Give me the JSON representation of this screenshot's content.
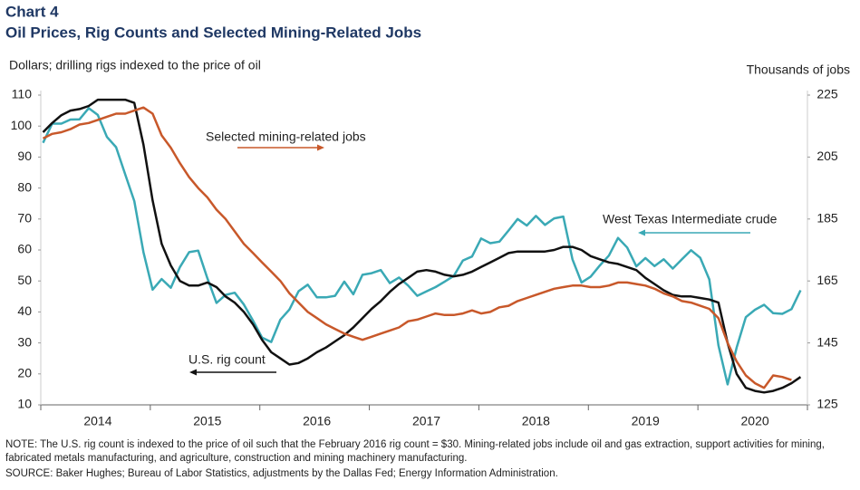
{
  "chart_data": {
    "type": "line",
    "kicker": "Chart 4",
    "title": "Oil Prices, Rig Counts and Selected Mining-Related Jobs",
    "y_label": "Dollars; drilling rigs indexed to the price of oil",
    "y2_label": "Thousands  of  jobs",
    "note": "NOTE: The U.S. rig count is indexed to the price of oil such that the February 2016 rig count = $30. Mining-related  jobs include oil and gas extraction, support activities for mining, fabricated metals manufacturing,  and agriculture, construction and mining machinery manufacturing.",
    "source": "SOURCE: Baker Hughes; Bureau of Labor Statistics, adjustments by the Dallas Fed; Energy Information  Administration.",
    "categories": [
      null,
      null,
      null,
      null,
      null,
      null,
      "2014",
      null,
      null,
      null,
      null,
      null,
      null,
      null,
      null,
      null,
      null,
      null,
      "2015",
      null,
      null,
      null,
      null,
      null,
      null,
      null,
      null,
      null,
      null,
      null,
      "2016",
      null,
      null,
      null,
      null,
      null,
      null,
      null,
      null,
      null,
      null,
      null,
      "2017",
      null,
      null,
      null,
      null,
      null,
      null,
      null,
      null,
      null,
      null,
      null,
      "2018",
      null,
      null,
      null,
      null,
      null,
      null,
      null,
      null,
      null,
      null,
      null,
      "2019",
      null,
      null,
      null,
      null,
      null,
      null,
      null,
      null,
      null,
      null,
      null,
      "2020",
      null,
      null,
      null,
      null,
      null
    ],
    "ylim": [
      10,
      110
    ],
    "yticks": [
      10,
      20,
      30,
      40,
      50,
      60,
      70,
      80,
      90,
      100,
      110
    ],
    "y2lim": [
      125,
      225
    ],
    "y2ticks": [
      125,
      145,
      165,
      185,
      205,
      225
    ],
    "series": [
      {
        "name": "West Texas Intermediate crude",
        "color": "#3aa9b5",
        "values": [
          94.6,
          100.8,
          100.8,
          102.1,
          102.2,
          105.8,
          103.6,
          96.5,
          93.2,
          84.4,
          75.8,
          59.3,
          47.2,
          50.6,
          47.8,
          54.5,
          59.3,
          59.8,
          50.9,
          42.9,
          45.5,
          46.2,
          42.4,
          37.2,
          31.7,
          30.3,
          37.5,
          40.8,
          46.7,
          48.8,
          44.7,
          44.7,
          45.2,
          49.8,
          45.7,
          52.0,
          52.5,
          53.5,
          49.3,
          51.1,
          48.5,
          45.2,
          46.6,
          48.0,
          49.8,
          51.6,
          56.6,
          57.9,
          63.7,
          62.2,
          62.7,
          66.3,
          70.0,
          67.9,
          71.0,
          68.1,
          70.2,
          70.8,
          57.0,
          49.5,
          51.4,
          55.0,
          58.2,
          63.9,
          60.8,
          54.7,
          57.4,
          54.8,
          57.0,
          54.0,
          57.0,
          59.9,
          57.5,
          50.5,
          29.2,
          16.6,
          28.5,
          38.3,
          40.7,
          42.3,
          39.6,
          39.4,
          40.9,
          47.0
        ]
      },
      {
        "name": "U.S. rig count",
        "color": "#111111",
        "values": [
          98,
          101,
          103.5,
          105,
          105.5,
          106.5,
          108.5,
          108.5,
          108.5,
          108.5,
          107.5,
          94,
          76,
          62,
          55,
          50,
          48.5,
          48.5,
          49.5,
          48,
          45,
          43,
          40,
          36,
          31,
          27,
          25,
          23,
          23.5,
          25,
          27,
          28.5,
          30.5,
          32.5,
          35,
          38,
          41,
          43.5,
          46.5,
          49,
          51,
          53,
          53.5,
          53,
          52,
          51.5,
          52,
          53,
          54.5,
          56,
          57.5,
          59,
          59.5,
          59.5,
          59.5,
          59.5,
          60,
          61,
          61,
          60,
          58,
          57,
          56,
          55.5,
          54.5,
          53.5,
          51,
          49,
          47,
          45.5,
          45,
          45,
          44.5,
          44,
          43,
          30,
          20,
          15.5,
          14.5,
          14,
          14.5,
          15.5,
          17,
          19
        ]
      },
      {
        "name": "Selected mining-related jobs",
        "color": "#c8582a",
        "axis": "y2",
        "values": [
          211,
          212.5,
          213,
          214,
          215.5,
          216,
          217,
          218,
          219,
          219,
          220,
          221,
          219,
          212,
          208,
          203,
          198.5,
          195,
          192,
          188,
          185,
          181,
          177,
          174,
          171,
          168,
          165,
          161,
          158,
          155,
          153,
          151,
          149.5,
          148,
          147,
          146,
          147,
          148,
          149,
          150,
          152,
          152.5,
          153.5,
          154.5,
          154,
          154,
          154.5,
          155.5,
          154.5,
          155,
          156.5,
          157,
          158.5,
          159.5,
          160.5,
          161.5,
          162.5,
          163,
          163.5,
          163.5,
          163,
          163,
          163.5,
          164.5,
          164.5,
          164,
          163.5,
          162.5,
          161,
          160,
          158.5,
          158,
          157,
          156,
          153,
          145,
          139,
          134.5,
          132,
          130.5,
          134.5,
          134,
          133,
          null
        ]
      }
    ]
  }
}
